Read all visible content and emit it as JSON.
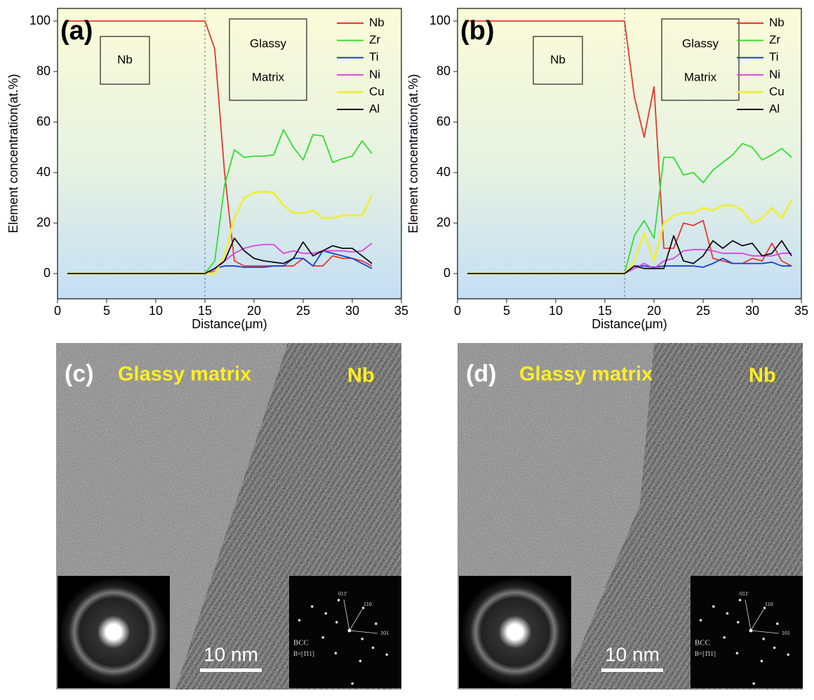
{
  "chart_data": [
    {
      "type": "line",
      "title": "(a)",
      "xlabel": "Distance(μm)",
      "ylabel": "Element concentration(at.%)",
      "xlim": [
        0,
        35
      ],
      "ylim": [
        -10,
        105
      ],
      "xticks": [
        0,
        5,
        10,
        15,
        20,
        25,
        30,
        35
      ],
      "yticks": [
        0,
        20,
        40,
        60,
        80,
        100
      ],
      "divider_x": 15,
      "box_labels": [
        "Nb",
        "Glassy",
        "Matrix"
      ],
      "legend": "upper right",
      "x": [
        1,
        15,
        16,
        17,
        18,
        19,
        20,
        21,
        22,
        23,
        24,
        25,
        26,
        27,
        28,
        29,
        30,
        31,
        32
      ],
      "series": [
        {
          "name": "Nb",
          "color": "#e8372a",
          "values": [
            100,
            100,
            89,
            40,
            5,
            3,
            3,
            3,
            3,
            3,
            3,
            6,
            3,
            3,
            7,
            6,
            6,
            5,
            3
          ]
        },
        {
          "name": "Zr",
          "color": "#33dd33",
          "values": [
            0,
            0,
            5,
            35,
            49,
            46,
            46.5,
            46.5,
            47,
            57,
            50,
            45,
            55,
            54.5,
            44,
            45.5,
            46.5,
            52.5,
            47.5
          ]
        },
        {
          "name": "Ti",
          "color": "#1a3fcc",
          "values": [
            0,
            0,
            2,
            3,
            3,
            2.5,
            2.5,
            2.5,
            3,
            3,
            6,
            6,
            3,
            9,
            8,
            7,
            6,
            4,
            2
          ]
        },
        {
          "name": "Ni",
          "color": "#e040e0",
          "values": [
            0,
            0,
            1,
            5,
            8,
            10,
            11,
            11.5,
            11.5,
            8,
            9,
            8,
            8,
            9,
            9,
            9,
            8.5,
            9,
            12
          ]
        },
        {
          "name": "Cu",
          "color": "#eeee44",
          "values": [
            0,
            0,
            0,
            7,
            22,
            30,
            32,
            32.5,
            32,
            27,
            24,
            24,
            25,
            22,
            22,
            23,
            23,
            23,
            31
          ]
        },
        {
          "name": "Al",
          "color": "#111111",
          "values": [
            0,
            0,
            2,
            5,
            14,
            9,
            6,
            5,
            4.5,
            4,
            6,
            12.5,
            7,
            9,
            11,
            10,
            10,
            7,
            4
          ]
        }
      ]
    },
    {
      "type": "line",
      "title": "(b)",
      "xlabel": "Distance(μm)",
      "ylabel": "Element concentration(at.%)",
      "xlim": [
        0,
        35
      ],
      "ylim": [
        -10,
        105
      ],
      "xticks": [
        0,
        5,
        10,
        15,
        20,
        25,
        30,
        35
      ],
      "yticks": [
        0,
        20,
        40,
        60,
        80,
        100
      ],
      "divider_x": 17,
      "box_labels": [
        "Nb",
        "Glassy",
        "Matrix"
      ],
      "legend": "upper right",
      "x": [
        1,
        17,
        18,
        19,
        20,
        21,
        22,
        23,
        24,
        25,
        26,
        27,
        28,
        29,
        30,
        31,
        32,
        33,
        34
      ],
      "series": [
        {
          "name": "Nb",
          "color": "#e8372a",
          "values": [
            100,
            100,
            70,
            54,
            74,
            10,
            10,
            20,
            19,
            21,
            6,
            5,
            4,
            4,
            6,
            5,
            12,
            5,
            3
          ]
        },
        {
          "name": "Zr",
          "color": "#33dd33",
          "values": [
            0,
            0,
            15,
            21,
            14,
            46,
            46,
            39,
            40,
            36,
            41,
            44,
            47,
            51.5,
            50,
            45,
            47,
            49.5,
            46
          ]
        },
        {
          "name": "Ti",
          "color": "#1a3fcc",
          "values": [
            0,
            0,
            3,
            3,
            2.5,
            3,
            3,
            3,
            3,
            2.5,
            4,
            6,
            4,
            4,
            4,
            4,
            4.5,
            3,
            3
          ]
        },
        {
          "name": "Ni",
          "color": "#e040e0",
          "values": [
            0,
            0,
            2,
            4,
            2,
            5,
            6,
            9,
            9.5,
            9.5,
            9,
            8,
            8,
            8,
            7,
            7,
            7,
            8,
            8
          ]
        },
        {
          "name": "Cu",
          "color": "#eeee44",
          "values": [
            0,
            0,
            5,
            16,
            5,
            20,
            23,
            24,
            24,
            26,
            25,
            27,
            27,
            25,
            20,
            22,
            26,
            22,
            29
          ]
        },
        {
          "name": "Al",
          "color": "#111111",
          "values": [
            0,
            0,
            3,
            2,
            2,
            2,
            15,
            5,
            4,
            7,
            13,
            10,
            13,
            11,
            12,
            7,
            8,
            13,
            7
          ]
        }
      ]
    }
  ],
  "images": [
    {
      "label": "(c)",
      "left_text": "Glassy matrix",
      "right_text": "Nb",
      "scale_bar": "10 nm",
      "diffraction": {
        "phase": "BCC",
        "zone": "B=[1̄11]",
        "spots": [
          "011̄",
          "110",
          "101"
        ]
      }
    },
    {
      "label": "(d)",
      "left_text": "Glassy matrix",
      "right_text": "Nb",
      "scale_bar": "10 nm",
      "diffraction": {
        "phase": "BCC",
        "zone": "B=[1̄11]",
        "spots": [
          "011̄",
          "110",
          "101"
        ]
      }
    }
  ]
}
